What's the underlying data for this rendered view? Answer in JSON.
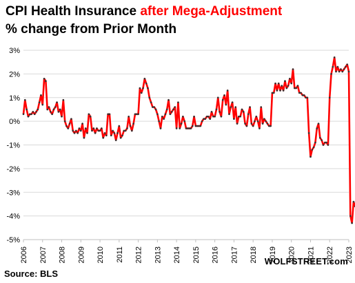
{
  "title": {
    "line1_prefix": "CPI Health Insurance ",
    "line1_highlight": "after Mega-Adjustment",
    "line2": "% change from Prior Month"
  },
  "source": "Source: BLS",
  "brand": "WOLFSTREET.com",
  "colors": {
    "line": "#ff0000",
    "markers": "#333333",
    "grid": "#d9d9d9",
    "highlight": "#ff0000"
  },
  "chart_data": {
    "type": "line",
    "title": "CPI Health Insurance after Mega-Adjustment — % change from Prior Month",
    "xlabel": "",
    "ylabel": "",
    "ylim": [
      -5,
      3
    ],
    "xlim": [
      2006,
      2023
    ],
    "grid": true,
    "legend": "none",
    "yticks": [
      3,
      2,
      1,
      0,
      -1,
      -2,
      -3,
      -4,
      -5
    ],
    "ytick_labels": [
      "3%",
      "2%",
      "1%",
      "0%",
      "-1%",
      "-2%",
      "-3%",
      "-4%",
      "-5%"
    ],
    "xticks": [
      2006,
      2007,
      2008,
      2009,
      2010,
      2011,
      2012,
      2013,
      2014,
      2015,
      2016,
      2017,
      2018,
      2019,
      2020,
      2021,
      2022,
      2023
    ],
    "xtick_labels": [
      "2006",
      "2007",
      "2008",
      "2009",
      "2010",
      "2011",
      "2012",
      "2013",
      "2014",
      "2015",
      "2016",
      "2017",
      "2018",
      "2019",
      "2020",
      "2021",
      "2022",
      "2023"
    ],
    "series": [
      {
        "x_start": "2006-01",
        "x_step_months": 1,
        "values": [
          0.3,
          0.9,
          0.5,
          0.2,
          0.3,
          0.3,
          0.4,
          0.3,
          0.4,
          0.5,
          0.8,
          1.1,
          0.7,
          1.8,
          1.7,
          0.5,
          0.6,
          0.4,
          0.3,
          0.5,
          0.6,
          0.8,
          0.4,
          0.5,
          0.2,
          0.9,
          0.0,
          -0.2,
          -0.3,
          -0.1,
          0.1,
          -0.4,
          -0.5,
          -0.4,
          -0.5,
          -0.3,
          -0.4,
          -0.1,
          -0.7,
          -0.3,
          -0.5,
          0.3,
          0.2,
          -0.4,
          -0.3,
          -0.5,
          -0.3,
          -0.4,
          -0.4,
          -0.3,
          -0.7,
          -0.5,
          -0.6,
          0.3,
          0.3,
          -0.6,
          -0.4,
          -0.5,
          -0.8,
          -0.5,
          -0.2,
          -0.7,
          -0.6,
          -0.4,
          -0.4,
          -0.3,
          0.2,
          -0.2,
          -0.4,
          -0.1,
          0.3,
          0.3,
          0.3,
          1.4,
          1.2,
          1.4,
          1.8,
          1.6,
          1.4,
          1.0,
          0.8,
          0.6,
          0.6,
          0.5,
          0.3,
          0.0,
          -0.3,
          0.2,
          0.1,
          0.3,
          0.5,
          0.9,
          0.3,
          0.4,
          0.5,
          0.6,
          -0.3,
          0.8,
          -0.3,
          -0.1,
          0.2,
          0.0,
          -0.3,
          -0.3,
          -0.3,
          -0.3,
          -0.2,
          0.2,
          -0.2,
          -0.2,
          -0.2,
          -0.2,
          0.0,
          0.1,
          0.1,
          0.2,
          0.2,
          0.1,
          0.4,
          0.2,
          0.2,
          0.5,
          1.0,
          0.4,
          0.2,
          0.9,
          1.1,
          0.7,
          1.3,
          0.3,
          0.6,
          0.8,
          0.1,
          0.6,
          -0.1,
          0.2,
          0.2,
          0.5,
          0.4,
          -0.1,
          -0.2,
          0.3,
          0.6,
          -0.1,
          -0.2,
          0.0,
          0.2,
          0.0,
          -0.3,
          0.6,
          -0.1,
          0.1,
          0.0,
          -0.1,
          -0.2,
          -0.2,
          1.2,
          1.2,
          1.6,
          1.3,
          1.6,
          1.3,
          1.5,
          1.3,
          1.7,
          1.4,
          1.5,
          1.8,
          1.6,
          2.2,
          1.4,
          1.4,
          1.5,
          1.2,
          1.2,
          1.1,
          1.1,
          1.0,
          1.0,
          -0.5,
          -1.5,
          -1.2,
          -1.1,
          -0.9,
          -0.3,
          -0.1,
          -0.7,
          -0.8,
          -1.0,
          -0.9,
          -0.9,
          -1.0,
          1.0,
          2.0,
          2.3,
          2.7,
          2.1,
          2.3,
          2.1,
          2.2,
          2.1,
          2.2,
          2.3,
          2.4,
          2.1,
          -4.0,
          -4.3,
          -3.4,
          -3.6
        ]
      }
    ]
  }
}
